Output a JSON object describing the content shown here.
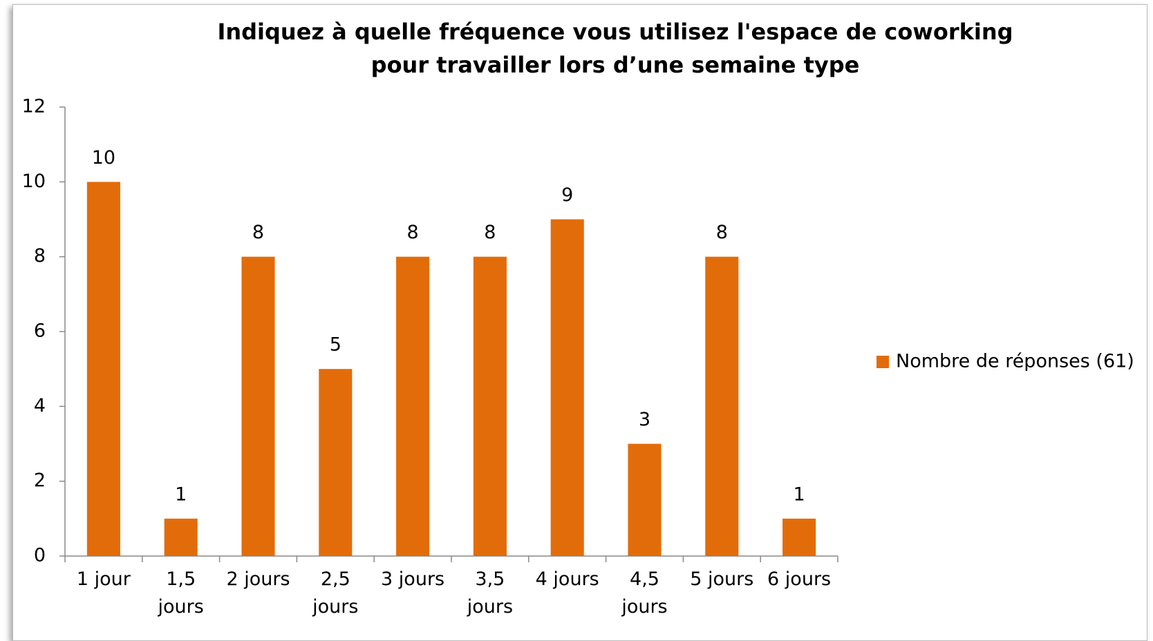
{
  "chart_data": {
    "type": "bar",
    "title": "Indiquez à quelle fréquence vous utilisez l'espace de coworking pour travailler lors d’une semaine type",
    "categories": [
      "1 jour",
      "1,5 jours",
      "2 jours",
      "2,5 jours",
      "3 jours",
      "3,5 jours",
      "4 jours",
      "4,5 jours",
      "5 jours",
      "6 jours"
    ],
    "series": [
      {
        "name": "Nombre de réponses (61)",
        "color": "#e36c0a",
        "values": [
          10,
          1,
          8,
          5,
          8,
          8,
          9,
          3,
          8,
          1
        ]
      }
    ],
    "ylim": [
      0,
      12
    ],
    "yticks": [
      0,
      2,
      4,
      6,
      8,
      10,
      12
    ],
    "grid": false,
    "legend": "right"
  }
}
